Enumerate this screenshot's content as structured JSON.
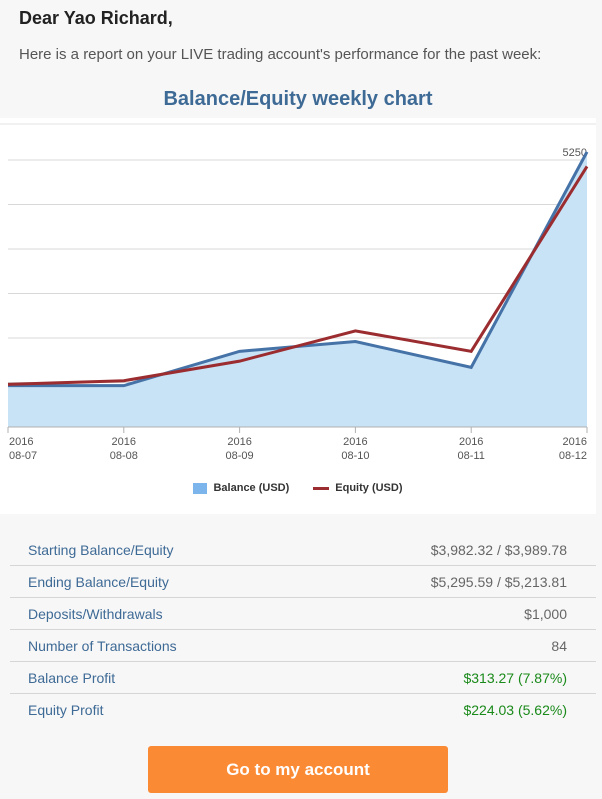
{
  "greeting": "Dear Yao Richard,",
  "intro": "Here is a report on your LIVE trading account's performance for the past week:",
  "chart_title": "Balance/Equity weekly chart",
  "chart_data": {
    "type": "area",
    "title": "Balance/Equity weekly chart",
    "x": [
      "2016-08-07",
      "2016-08-08",
      "2016-08-09",
      "2016-08-10",
      "2016-08-11",
      "2016-08-12"
    ],
    "x_tick_labels": [
      [
        "2016",
        "08-07"
      ],
      [
        "2016",
        "08-08"
      ],
      [
        "2016",
        "08-09"
      ],
      [
        "2016",
        "08-10"
      ],
      [
        "2016",
        "08-11"
      ],
      [
        "2016",
        "08-12"
      ]
    ],
    "ylim": [
      3750,
      5250
    ],
    "y_ticks": [
      3750,
      4000,
      4250,
      4500,
      4750,
      5000,
      5250
    ],
    "grid": true,
    "legend_position": "bottom-center",
    "series": [
      {
        "name": "Balance (USD)",
        "values": [
          3982.32,
          3982.32,
          4175,
          4230,
          4085,
          5295.59
        ],
        "color": "#4572a7",
        "fill": "#c8e2f6",
        "style": "area"
      },
      {
        "name": "Equity (USD)",
        "values": [
          3989.78,
          4010,
          4120,
          4290,
          4175,
          5213.81
        ],
        "color": "#9b2d30",
        "style": "line"
      }
    ]
  },
  "stats": [
    {
      "label": "Starting Balance/Equity",
      "value": "$3,982.32 / $3,989.78",
      "positive": false
    },
    {
      "label": "Ending Balance/Equity",
      "value": "$5,295.59 / $5,213.81",
      "positive": false
    },
    {
      "label": "Deposits/Withdrawals",
      "value": "$1,000",
      "positive": false
    },
    {
      "label": "Number of Transactions",
      "value": "84",
      "positive": false
    },
    {
      "label": "Balance Profit",
      "value": "$313.27 (7.87%)",
      "positive": true
    },
    {
      "label": "Equity Profit",
      "value": "$224.03 (5.62%)",
      "positive": true
    }
  ],
  "cta_label": "Go to my account",
  "colors": {
    "accent": "#3e6a96",
    "cta": "#fb8a35",
    "positive": "#1a8a1a"
  }
}
